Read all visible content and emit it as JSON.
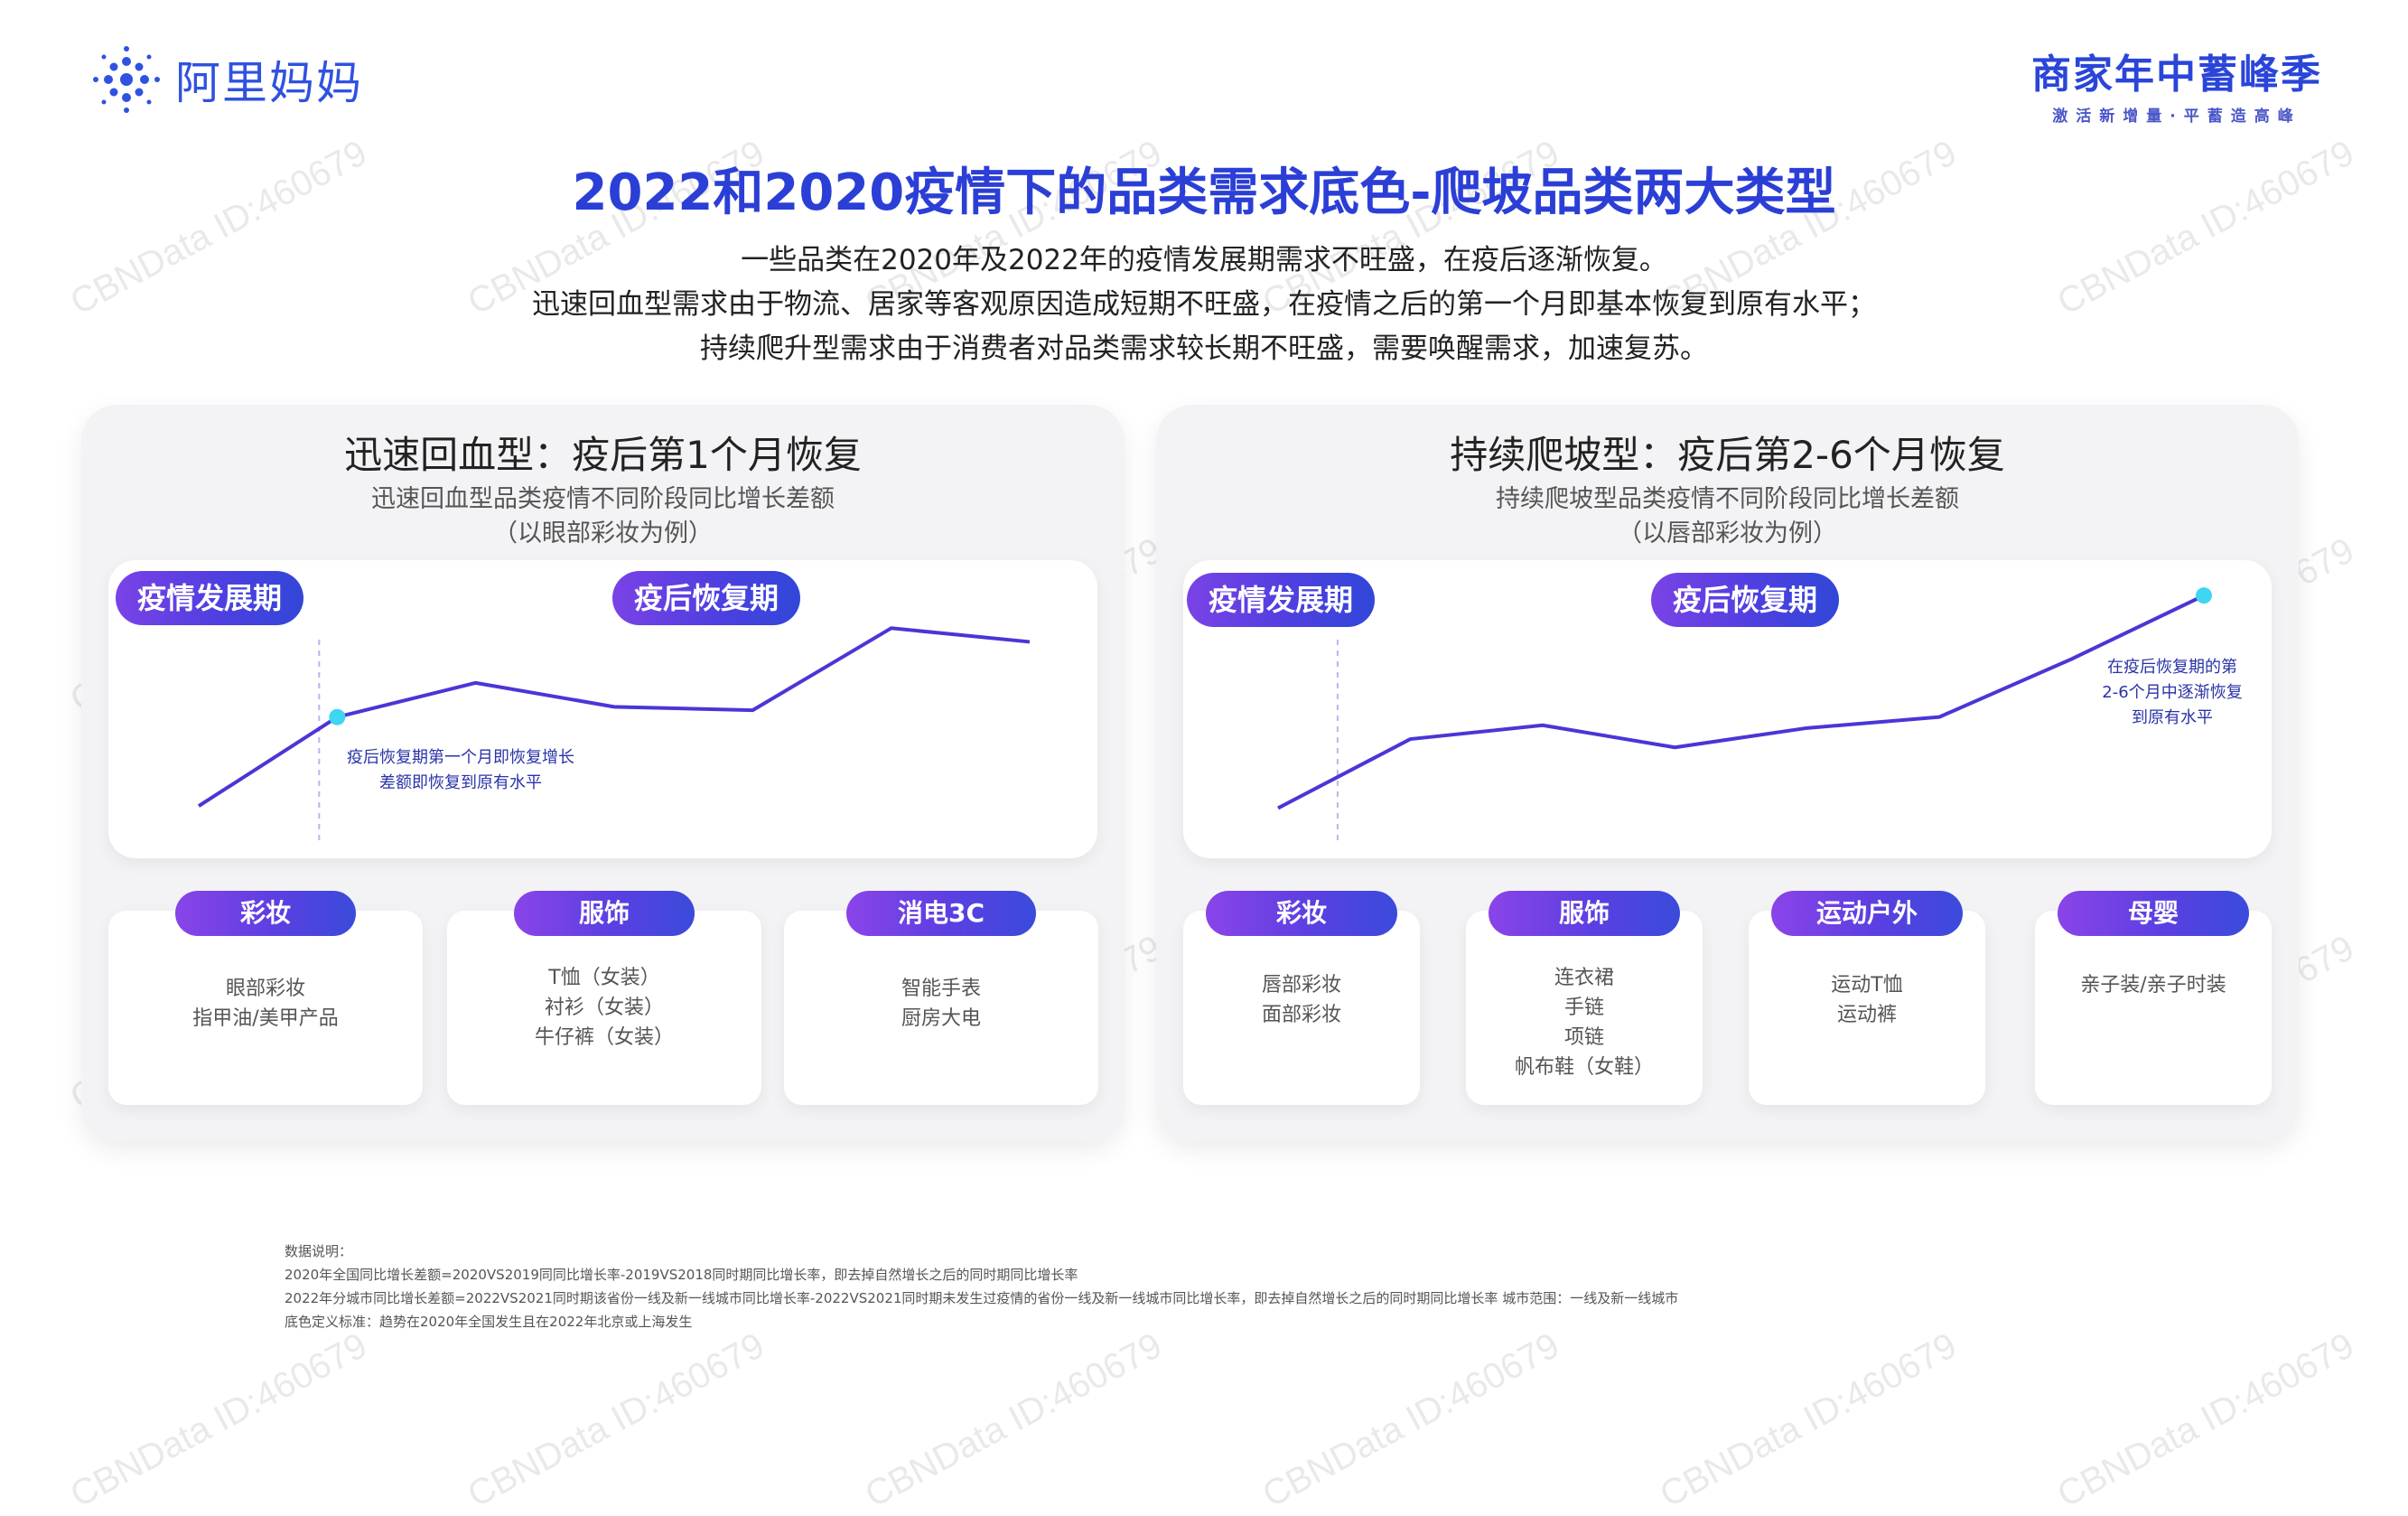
{
  "header": {
    "brand_name": "阿里妈妈",
    "event_title": "商家年中蓄峰季",
    "event_subtitle": "激活新增量·平蓄造高峰"
  },
  "title": "2022和2020疫情下的品类需求底色-爬坡品类两大类型",
  "intro": [
    "一些品类在2020年及2022年的疫情发展期需求不旺盛，在疫后逐渐恢复。",
    "迅速回血型需求由于物流、居家等客观原因造成短期不旺盛，在疫情之后的第一个月即基本恢复到原有水平；",
    "持续爬升型需求由于消费者对品类需求较长期不旺盛，需要唤醒需求，加速复苏。"
  ],
  "panels": {
    "left": {
      "title": "迅速回血型：疫后第1个月恢复",
      "subtitle": "迅速回血型品类疫情不同阶段同比增长差额",
      "example": "（以眼部彩妆为例）",
      "phase1": "疫情发展期",
      "phase2": "疫后恢复期",
      "annotation_line1": "疫后恢复期第一个月即恢复增长",
      "annotation_line2": "差额即恢复到原有水平",
      "categories": [
        {
          "label": "彩妆",
          "items": [
            "眼部彩妆",
            "指甲油/美甲产品"
          ]
        },
        {
          "label": "服饰",
          "items": [
            "T恤（女装）",
            "衬衫（女装）",
            "牛仔裤（女装）"
          ]
        },
        {
          "label": "消电3C",
          "items": [
            "智能手表",
            "厨房大电"
          ]
        }
      ]
    },
    "right": {
      "title": "持续爬坡型：疫后第2-6个月恢复",
      "subtitle": "持续爬坡型品类疫情不同阶段同比增长差额",
      "example": "（以唇部彩妆为例）",
      "phase1": "疫情发展期",
      "phase2": "疫后恢复期",
      "annotation_line1": "在疫后恢复期的第",
      "annotation_line2": "2-6个月中逐渐恢复",
      "annotation_line3": "到原有水平",
      "categories": [
        {
          "label": "彩妆",
          "items": [
            "唇部彩妆",
            "面部彩妆"
          ]
        },
        {
          "label": "服饰",
          "items": [
            "连衣裙",
            "手链",
            "项链",
            "帆布鞋（女鞋）"
          ]
        },
        {
          "label": "运动户外",
          "items": [
            "运动T恤",
            "运动裤"
          ]
        },
        {
          "label": "母婴",
          "items": [
            "亲子装/亲子时装"
          ]
        }
      ]
    }
  },
  "chart_data": [
    {
      "type": "line",
      "x": [
        1,
        2,
        3,
        4,
        5,
        6,
        7
      ],
      "series": [
        {
          "values": [
            1.0,
            3.6,
            4.6,
            3.9,
            3.8,
            6.2,
            5.8
          ]
        }
      ],
      "ylim": [
        0,
        7
      ],
      "highlight_index": 1,
      "phase_divider_after_index": 1,
      "line_color": "#4a36d6",
      "marker_color": "#3ed6f2"
    },
    {
      "type": "line",
      "x": [
        1,
        2,
        3,
        4,
        5,
        6,
        7,
        8
      ],
      "series": [
        {
          "values": [
            1.0,
            3.5,
            4.0,
            3.2,
            3.9,
            4.3,
            6.4,
            8.7
          ]
        }
      ],
      "ylim": [
        0,
        9
      ],
      "highlight_index": 7,
      "phase_divider_after_index": 0,
      "line_color": "#4a36d6",
      "marker_color": "#3ed6f2"
    }
  ],
  "footnote": [
    "数据说明：",
    "2020年全国同比增长差额=2020VS2019同同比增长率-2019VS2018同时期同比增长率，即去掉自然增长之后的同时期同比增长率",
    "2022年分城市同比增长差额=2022VS2021同时期该省份一线及新一线城市同比增长率-2022VS2021同时期未发生过疫情的省份一线及新一线城市同比增长率，即去掉自然增长之后的同时期同比增长率 城市范围：一线及新一线城市",
    "底色定义标准：趋势在2020年全国发生且在2022年北京或上海发生"
  ],
  "watermark": "CBNData ID:460679"
}
